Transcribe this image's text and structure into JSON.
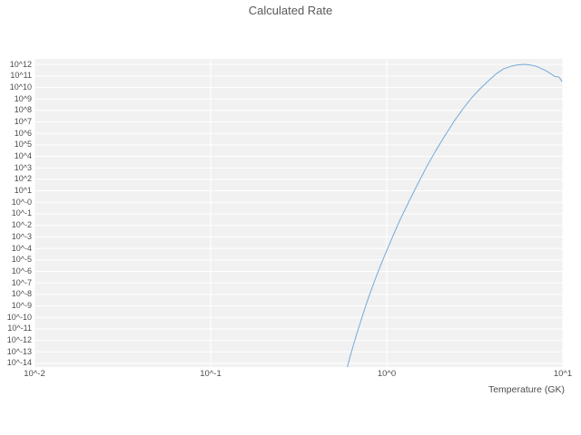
{
  "chart_data": {
    "type": "line",
    "title": "Calculated Rate",
    "xlabel": "Temperature (GK)",
    "ylabel": "",
    "x_scale": "log",
    "y_scale": "log",
    "xlim_exp": [
      -2,
      1
    ],
    "ylim_exp": [
      -14,
      12
    ],
    "grid": "white-major-on-gray-panel",
    "legend_position": "none",
    "colors": {
      "line": "#74a9d8",
      "panel_bg": "#f1f1f1",
      "grid": "#ffffff",
      "title_text": "#595959",
      "tick_text": "#4d4d4d"
    },
    "xticks": [
      {
        "label": "10^-2",
        "exp": -2
      },
      {
        "label": "10^-1",
        "exp": -1
      },
      {
        "label": "10^0",
        "exp": 0
      },
      {
        "label": "10^1",
        "exp": 1
      }
    ],
    "yticks": [
      {
        "label": "10^12",
        "exp": 12
      },
      {
        "label": "10^11",
        "exp": 11
      },
      {
        "label": "10^10",
        "exp": 10
      },
      {
        "label": "10^9",
        "exp": 9
      },
      {
        "label": "10^8",
        "exp": 8
      },
      {
        "label": "10^7",
        "exp": 7
      },
      {
        "label": "10^6",
        "exp": 6
      },
      {
        "label": "10^5",
        "exp": 5
      },
      {
        "label": "10^4",
        "exp": 4
      },
      {
        "label": "10^3",
        "exp": 3
      },
      {
        "label": "10^2",
        "exp": 2
      },
      {
        "label": "10^1",
        "exp": 1
      },
      {
        "label": "10^-0",
        "exp": 0
      },
      {
        "label": "10^-1",
        "exp": -1
      },
      {
        "label": "10^-2",
        "exp": -2
      },
      {
        "label": "10^-3",
        "exp": -3
      },
      {
        "label": "10^-4",
        "exp": -4
      },
      {
        "label": "10^-5",
        "exp": -5
      },
      {
        "label": "10^-6",
        "exp": -6
      },
      {
        "label": "10^-7",
        "exp": -7
      },
      {
        "label": "10^-8",
        "exp": -8
      },
      {
        "label": "10^-9",
        "exp": -9
      },
      {
        "label": "10^-10",
        "exp": -10
      },
      {
        "label": "10^-11",
        "exp": -11
      },
      {
        "label": "10^-12",
        "exp": -12
      },
      {
        "label": "10^-13",
        "exp": -13
      },
      {
        "label": "10^-14",
        "exp": -14
      }
    ],
    "series": [
      {
        "name": "calculated-rate",
        "points_T_log10rate": [
          [
            0.59,
            -14.6
          ],
          [
            0.6,
            -14.2
          ],
          [
            0.62,
            -13.4
          ],
          [
            0.65,
            -12.3
          ],
          [
            0.68,
            -11.3
          ],
          [
            0.72,
            -10.1
          ],
          [
            0.76,
            -9.0
          ],
          [
            0.8,
            -8.0
          ],
          [
            0.85,
            -6.9
          ],
          [
            0.9,
            -5.9
          ],
          [
            0.95,
            -5.0
          ],
          [
            1.0,
            -4.2
          ],
          [
            1.1,
            -2.7
          ],
          [
            1.2,
            -1.4
          ],
          [
            1.35,
            0.2
          ],
          [
            1.5,
            1.6
          ],
          [
            1.7,
            3.2
          ],
          [
            1.9,
            4.5
          ],
          [
            2.1,
            5.6
          ],
          [
            2.4,
            7.0
          ],
          [
            2.7,
            8.1
          ],
          [
            3.0,
            9.0
          ],
          [
            3.4,
            9.9
          ],
          [
            3.8,
            10.6
          ],
          [
            4.2,
            11.2
          ],
          [
            4.6,
            11.6
          ],
          [
            5.0,
            11.8
          ],
          [
            5.5,
            11.95
          ],
          [
            6.0,
            12.0
          ],
          [
            6.5,
            11.95
          ],
          [
            7.0,
            11.85
          ],
          [
            7.5,
            11.65
          ],
          [
            8.0,
            11.45
          ],
          [
            8.5,
            11.2
          ],
          [
            9.0,
            10.95
          ],
          [
            9.5,
            10.9
          ],
          [
            9.9,
            10.5
          ]
        ]
      }
    ]
  }
}
